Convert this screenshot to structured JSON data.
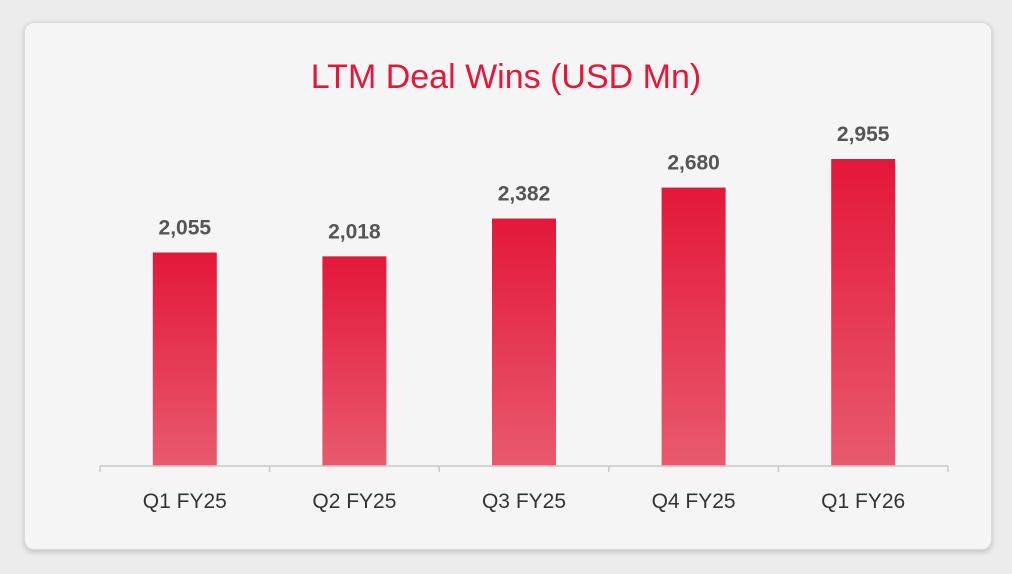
{
  "colors": {
    "bar_top": "#e4173a",
    "bar_bottom": "#e85a6e",
    "title": "#e4173a"
  },
  "chart_data": {
    "type": "bar",
    "title": "LTM Deal Wins (USD Mn)",
    "categories": [
      "Q1 FY25",
      "Q2 FY25",
      "Q3 FY25",
      "Q4 FY25",
      "Q1 FY26"
    ],
    "values": [
      2055,
      2018,
      2382,
      2680,
      2955
    ],
    "value_labels": [
      "2,055",
      "2,018",
      "2,382",
      "2,680",
      "2,955"
    ],
    "xlabel": "",
    "ylabel": "",
    "ylim": [
      0,
      2955
    ],
    "grid": false,
    "legend": "none"
  }
}
